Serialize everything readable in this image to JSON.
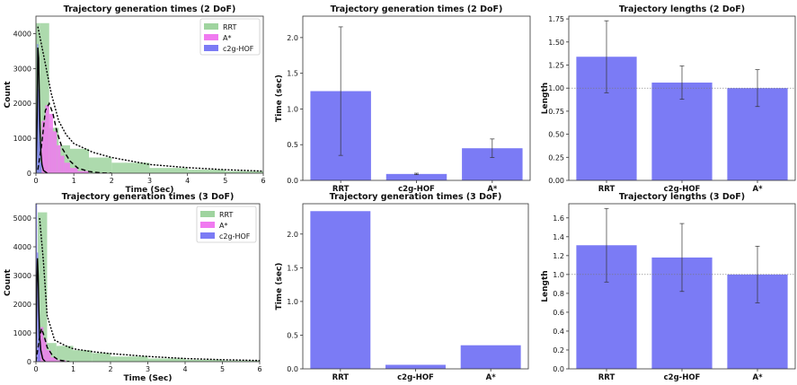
{
  "chart_data": [
    {
      "id": "p0",
      "type": "histogram",
      "title": "Trajectory generation times (2 DoF)",
      "xlabel": "Time (Sec)",
      "ylabel": "Count",
      "xlim": [
        0,
        6
      ],
      "ylim": [
        0,
        4500
      ],
      "xticks": [
        0,
        1,
        2,
        3,
        4,
        5,
        6
      ],
      "yticks": [
        0,
        1000,
        2000,
        3000,
        4000
      ],
      "legend": {
        "position": "top-right",
        "entries": [
          "RRT",
          "A*",
          "c2g-HOF"
        ]
      },
      "series": [
        {
          "name": "RRT",
          "color": "#9fd49f",
          "bins": [
            [
              0,
              0.1,
              4300
            ],
            [
              0.1,
              0.35,
              4300
            ],
            [
              0.35,
              0.6,
              1300
            ],
            [
              0.6,
              0.9,
              800
            ],
            [
              0.9,
              1.4,
              700
            ],
            [
              1.4,
              2,
              450
            ],
            [
              2,
              3,
              300
            ],
            [
              3,
              4,
              150
            ],
            [
              4,
              5,
              100
            ],
            [
              5,
              6,
              60
            ]
          ],
          "kde": [
            [
              0.05,
              4200
            ],
            [
              0.2,
              3400
            ],
            [
              0.4,
              2300
            ],
            [
              0.6,
              1500
            ],
            [
              0.8,
              1100
            ],
            [
              1,
              850
            ],
            [
              1.5,
              600
            ],
            [
              2,
              450
            ],
            [
              3,
              250
            ],
            [
              4,
              160
            ],
            [
              5,
              100
            ],
            [
              6,
              60
            ]
          ]
        },
        {
          "name": "A*",
          "color": "#f07af0",
          "bins": [
            [
              0.15,
              0.25,
              1500
            ],
            [
              0.25,
              0.35,
              1950
            ],
            [
              0.35,
              0.45,
              1700
            ],
            [
              0.45,
              0.55,
              1200
            ],
            [
              0.55,
              0.65,
              800
            ],
            [
              0.65,
              0.75,
              500
            ],
            [
              0.75,
              0.9,
              300
            ],
            [
              0.9,
              1.1,
              150
            ],
            [
              1.1,
              1.4,
              60
            ]
          ],
          "kde": [
            [
              0.05,
              100
            ],
            [
              0.15,
              800
            ],
            [
              0.25,
              1800
            ],
            [
              0.35,
              2000
            ],
            [
              0.45,
              1700
            ],
            [
              0.55,
              1200
            ],
            [
              0.7,
              700
            ],
            [
              0.9,
              350
            ],
            [
              1.1,
              150
            ],
            [
              1.4,
              50
            ],
            [
              1.7,
              10
            ],
            [
              2,
              0
            ]
          ]
        },
        {
          "name": "c2g-HOF",
          "color": "#7b7bf5",
          "bins": [
            [
              0,
              0.03,
              900
            ],
            [
              0.03,
              0.06,
              3700
            ],
            [
              0.06,
              0.09,
              2400
            ],
            [
              0.09,
              0.12,
              900
            ],
            [
              0.12,
              0.15,
              300
            ]
          ],
          "kde": [
            [
              0,
              0
            ],
            [
              0.03,
              1600
            ],
            [
              0.05,
              3600
            ],
            [
              0.07,
              3300
            ],
            [
              0.09,
              2200
            ],
            [
              0.11,
              1200
            ],
            [
              0.13,
              600
            ],
            [
              0.16,
              250
            ],
            [
              0.2,
              80
            ],
            [
              0.3,
              0
            ]
          ]
        }
      ]
    },
    {
      "id": "p1",
      "type": "bar",
      "title": "Trajectory generation times (2 DoF)",
      "xlabel": "",
      "ylabel": "Time (sec)",
      "ylim": [
        0,
        2.3
      ],
      "yticks": [
        0,
        0.5,
        1.0,
        1.5,
        2.0
      ],
      "ytick_labels": [
        "0.0",
        "0.5",
        "1.0",
        "1.5",
        "2.0"
      ],
      "categories": [
        "RRT",
        "c2g-HOF",
        "A*"
      ],
      "values": [
        1.25,
        0.09,
        0.45
      ],
      "errors": [
        0.9,
        0.01,
        0.13
      ],
      "color": "#7b7bf5"
    },
    {
      "id": "p2",
      "type": "bar",
      "title": "Trajectory lengths (2 DoF)",
      "xlabel": "",
      "ylabel": "Length",
      "ylim": [
        0,
        1.78
      ],
      "yticks": [
        0,
        0.25,
        0.5,
        0.75,
        1.0,
        1.25,
        1.5,
        1.75
      ],
      "ytick_labels": [
        "0.00",
        "0.25",
        "0.50",
        "0.75",
        "1.00",
        "1.25",
        "1.50",
        "1.75"
      ],
      "categories": [
        "RRT",
        "c2g-HOF",
        "A*"
      ],
      "values": [
        1.34,
        1.06,
        1.0
      ],
      "errors": [
        0.39,
        0.18,
        0.2
      ],
      "reference_line": 1.0,
      "color": "#7b7bf5"
    },
    {
      "id": "p3",
      "type": "histogram",
      "title": "Trajectory generation times (3 DoF)",
      "xlabel": "Time (Sec)",
      "ylabel": "Count",
      "xlim": [
        0,
        6
      ],
      "ylim": [
        0,
        5500
      ],
      "xticks": [
        0,
        1,
        2,
        3,
        4,
        5,
        6
      ],
      "yticks": [
        0,
        1000,
        2000,
        3000,
        4000,
        5000
      ],
      "legend": {
        "position": "top-right",
        "entries": [
          "RRT",
          "A*",
          "c2g-HOF"
        ]
      },
      "series": [
        {
          "name": "RRT",
          "color": "#9fd49f",
          "bins": [
            [
              0.05,
              0.3,
              5200
            ],
            [
              0.3,
              0.55,
              650
            ],
            [
              0.55,
              1,
              550
            ],
            [
              1,
              1.5,
              400
            ],
            [
              1.5,
              2,
              300
            ],
            [
              2,
              3,
              180
            ],
            [
              3,
              4,
              110
            ],
            [
              4,
              5,
              70
            ],
            [
              5,
              6,
              40
            ]
          ],
          "kde": [
            [
              0.1,
              5000
            ],
            [
              0.2,
              3500
            ],
            [
              0.3,
              1600
            ],
            [
              0.5,
              750
            ],
            [
              0.8,
              550
            ],
            [
              1,
              450
            ],
            [
              1.5,
              350
            ],
            [
              2,
              280
            ],
            [
              3,
              180
            ],
            [
              4,
              110
            ],
            [
              5,
              70
            ],
            [
              6,
              40
            ]
          ]
        },
        {
          "name": "A*",
          "color": "#f07af0",
          "bins": [
            [
              0.05,
              0.12,
              600
            ],
            [
              0.12,
              0.2,
              1200
            ],
            [
              0.2,
              0.28,
              800
            ],
            [
              0.28,
              0.4,
              400
            ],
            [
              0.4,
              0.55,
              150
            ],
            [
              0.55,
              0.8,
              50
            ]
          ],
          "kde": [
            [
              0,
              0
            ],
            [
              0.08,
              700
            ],
            [
              0.15,
              1150
            ],
            [
              0.22,
              900
            ],
            [
              0.3,
              500
            ],
            [
              0.45,
              200
            ],
            [
              0.6,
              60
            ],
            [
              0.9,
              0
            ]
          ]
        },
        {
          "name": "c2g-HOF",
          "color": "#7b7bf5",
          "bins": [
            [
              0,
              0.03,
              5500
            ],
            [
              0.03,
              0.06,
              3800
            ],
            [
              0.06,
              0.09,
              1800
            ],
            [
              0.09,
              0.12,
              600
            ]
          ],
          "kde": [
            [
              0,
              0
            ],
            [
              0.02,
              2500
            ],
            [
              0.04,
              3600
            ],
            [
              0.06,
              3000
            ],
            [
              0.08,
              1800
            ],
            [
              0.1,
              900
            ],
            [
              0.13,
              400
            ],
            [
              0.18,
              100
            ],
            [
              0.25,
              0
            ]
          ]
        }
      ]
    },
    {
      "id": "p4",
      "type": "bar",
      "title": "Trajectory generation times (3 DoF)",
      "xlabel": "",
      "ylabel": "Time (sec)",
      "ylim": [
        0,
        2.45
      ],
      "yticks": [
        0,
        0.5,
        1.0,
        1.5,
        2.0
      ],
      "ytick_labels": [
        "0.0",
        "0.5",
        "1.0",
        "1.5",
        "2.0"
      ],
      "categories": [
        "RRT",
        "c2g-HOF",
        "A*"
      ],
      "values": [
        2.34,
        0.06,
        0.35
      ],
      "errors": [
        0,
        0,
        0
      ],
      "color": "#7b7bf5"
    },
    {
      "id": "p5",
      "type": "bar",
      "title": "Trajectory lengths (3 DoF)",
      "xlabel": "",
      "ylabel": "Length",
      "ylim": [
        0,
        1.75
      ],
      "yticks": [
        0,
        0.2,
        0.4,
        0.6,
        0.8,
        1.0,
        1.2,
        1.4,
        1.6
      ],
      "ytick_labels": [
        "0.0",
        "0.2",
        "0.4",
        "0.6",
        "0.8",
        "1.0",
        "1.2",
        "1.4",
        "1.6"
      ],
      "categories": [
        "RRT",
        "c2g-HOF",
        "A*"
      ],
      "values": [
        1.31,
        1.18,
        1.0
      ],
      "errors": [
        0.39,
        0.36,
        0.3
      ],
      "reference_line": 1.0,
      "color": "#7b7bf5"
    }
  ]
}
